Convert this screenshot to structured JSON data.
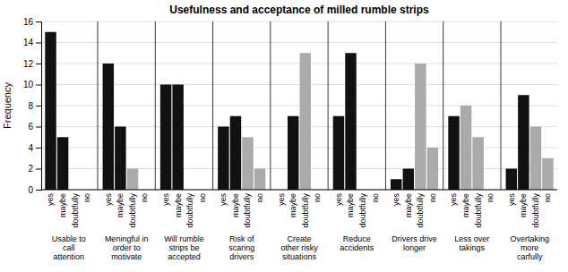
{
  "chart_data": {
    "type": "bar",
    "title": "Usefulness and acceptance of milled rumble strips",
    "ylabel": "Frequency",
    "ylim": [
      0,
      16
    ],
    "yticks": [
      0,
      2,
      4,
      6,
      8,
      10,
      12,
      14,
      16
    ],
    "grid": true,
    "groups": [
      {
        "label": "Usable to\ncall\nattention",
        "categories": [
          "yes",
          "maybe",
          "doubtfully",
          "no"
        ],
        "values": [
          15,
          5,
          0,
          0
        ],
        "colors": [
          "#111111",
          "#111111",
          "#aaaaaa",
          "#aaaaaa"
        ]
      },
      {
        "label": "Meningful in\norder to\nmotivate",
        "categories": [
          "yes",
          "maybe",
          "doubtfully",
          "no"
        ],
        "values": [
          12,
          6,
          2,
          0
        ],
        "colors": [
          "#111111",
          "#111111",
          "#aaaaaa",
          "#aaaaaa"
        ]
      },
      {
        "label": "Will rumble\nstrips be\naccepted",
        "categories": [
          "yes",
          "maybe",
          "doubtfully",
          "no"
        ],
        "values": [
          10,
          10,
          0,
          0
        ],
        "colors": [
          "#111111",
          "#111111",
          "#aaaaaa",
          "#aaaaaa"
        ]
      },
      {
        "label": "Risk of\nscaring\ndrivers",
        "categories": [
          "yes",
          "maybe",
          "doubtfully",
          "no"
        ],
        "values": [
          6,
          7,
          5,
          2
        ],
        "colors": [
          "#111111",
          "#111111",
          "#aaaaaa",
          "#aaaaaa"
        ]
      },
      {
        "label": "Create\nother risky\nsituations",
        "categories": [
          "yes",
          "maybe",
          "doubtfully",
          "no"
        ],
        "values": [
          0,
          7,
          13,
          0
        ],
        "colors": [
          "#111111",
          "#111111",
          "#aaaaaa",
          "#aaaaaa"
        ]
      },
      {
        "label": "Reduce\naccidents",
        "categories": [
          "yes",
          "maybe",
          "doubtfully",
          "no"
        ],
        "values": [
          7,
          13,
          0,
          0
        ],
        "colors": [
          "#111111",
          "#111111",
          "#aaaaaa",
          "#aaaaaa"
        ]
      },
      {
        "label": "Drivers drive\nlonger",
        "categories": [
          "yes",
          "maybe",
          "doubtfully",
          "no"
        ],
        "values": [
          1,
          2,
          12,
          4
        ],
        "colors": [
          "#111111",
          "#111111",
          "#aaaaaa",
          "#aaaaaa"
        ]
      },
      {
        "label": "Less over\ntakings",
        "categories": [
          "yes",
          "maybe",
          "doubtfully",
          "no"
        ],
        "values": [
          7,
          8,
          5,
          0
        ],
        "colors": [
          "#111111",
          "#aaaaaa",
          "#aaaaaa",
          "#aaaaaa"
        ]
      },
      {
        "label": "Overtaking\nmore\ncarfully",
        "categories": [
          "yes",
          "maybe",
          "doubtfully",
          "no"
        ],
        "values": [
          2,
          9,
          6,
          3
        ],
        "colors": [
          "#111111",
          "#111111",
          "#aaaaaa",
          "#aaaaaa"
        ]
      }
    ]
  }
}
